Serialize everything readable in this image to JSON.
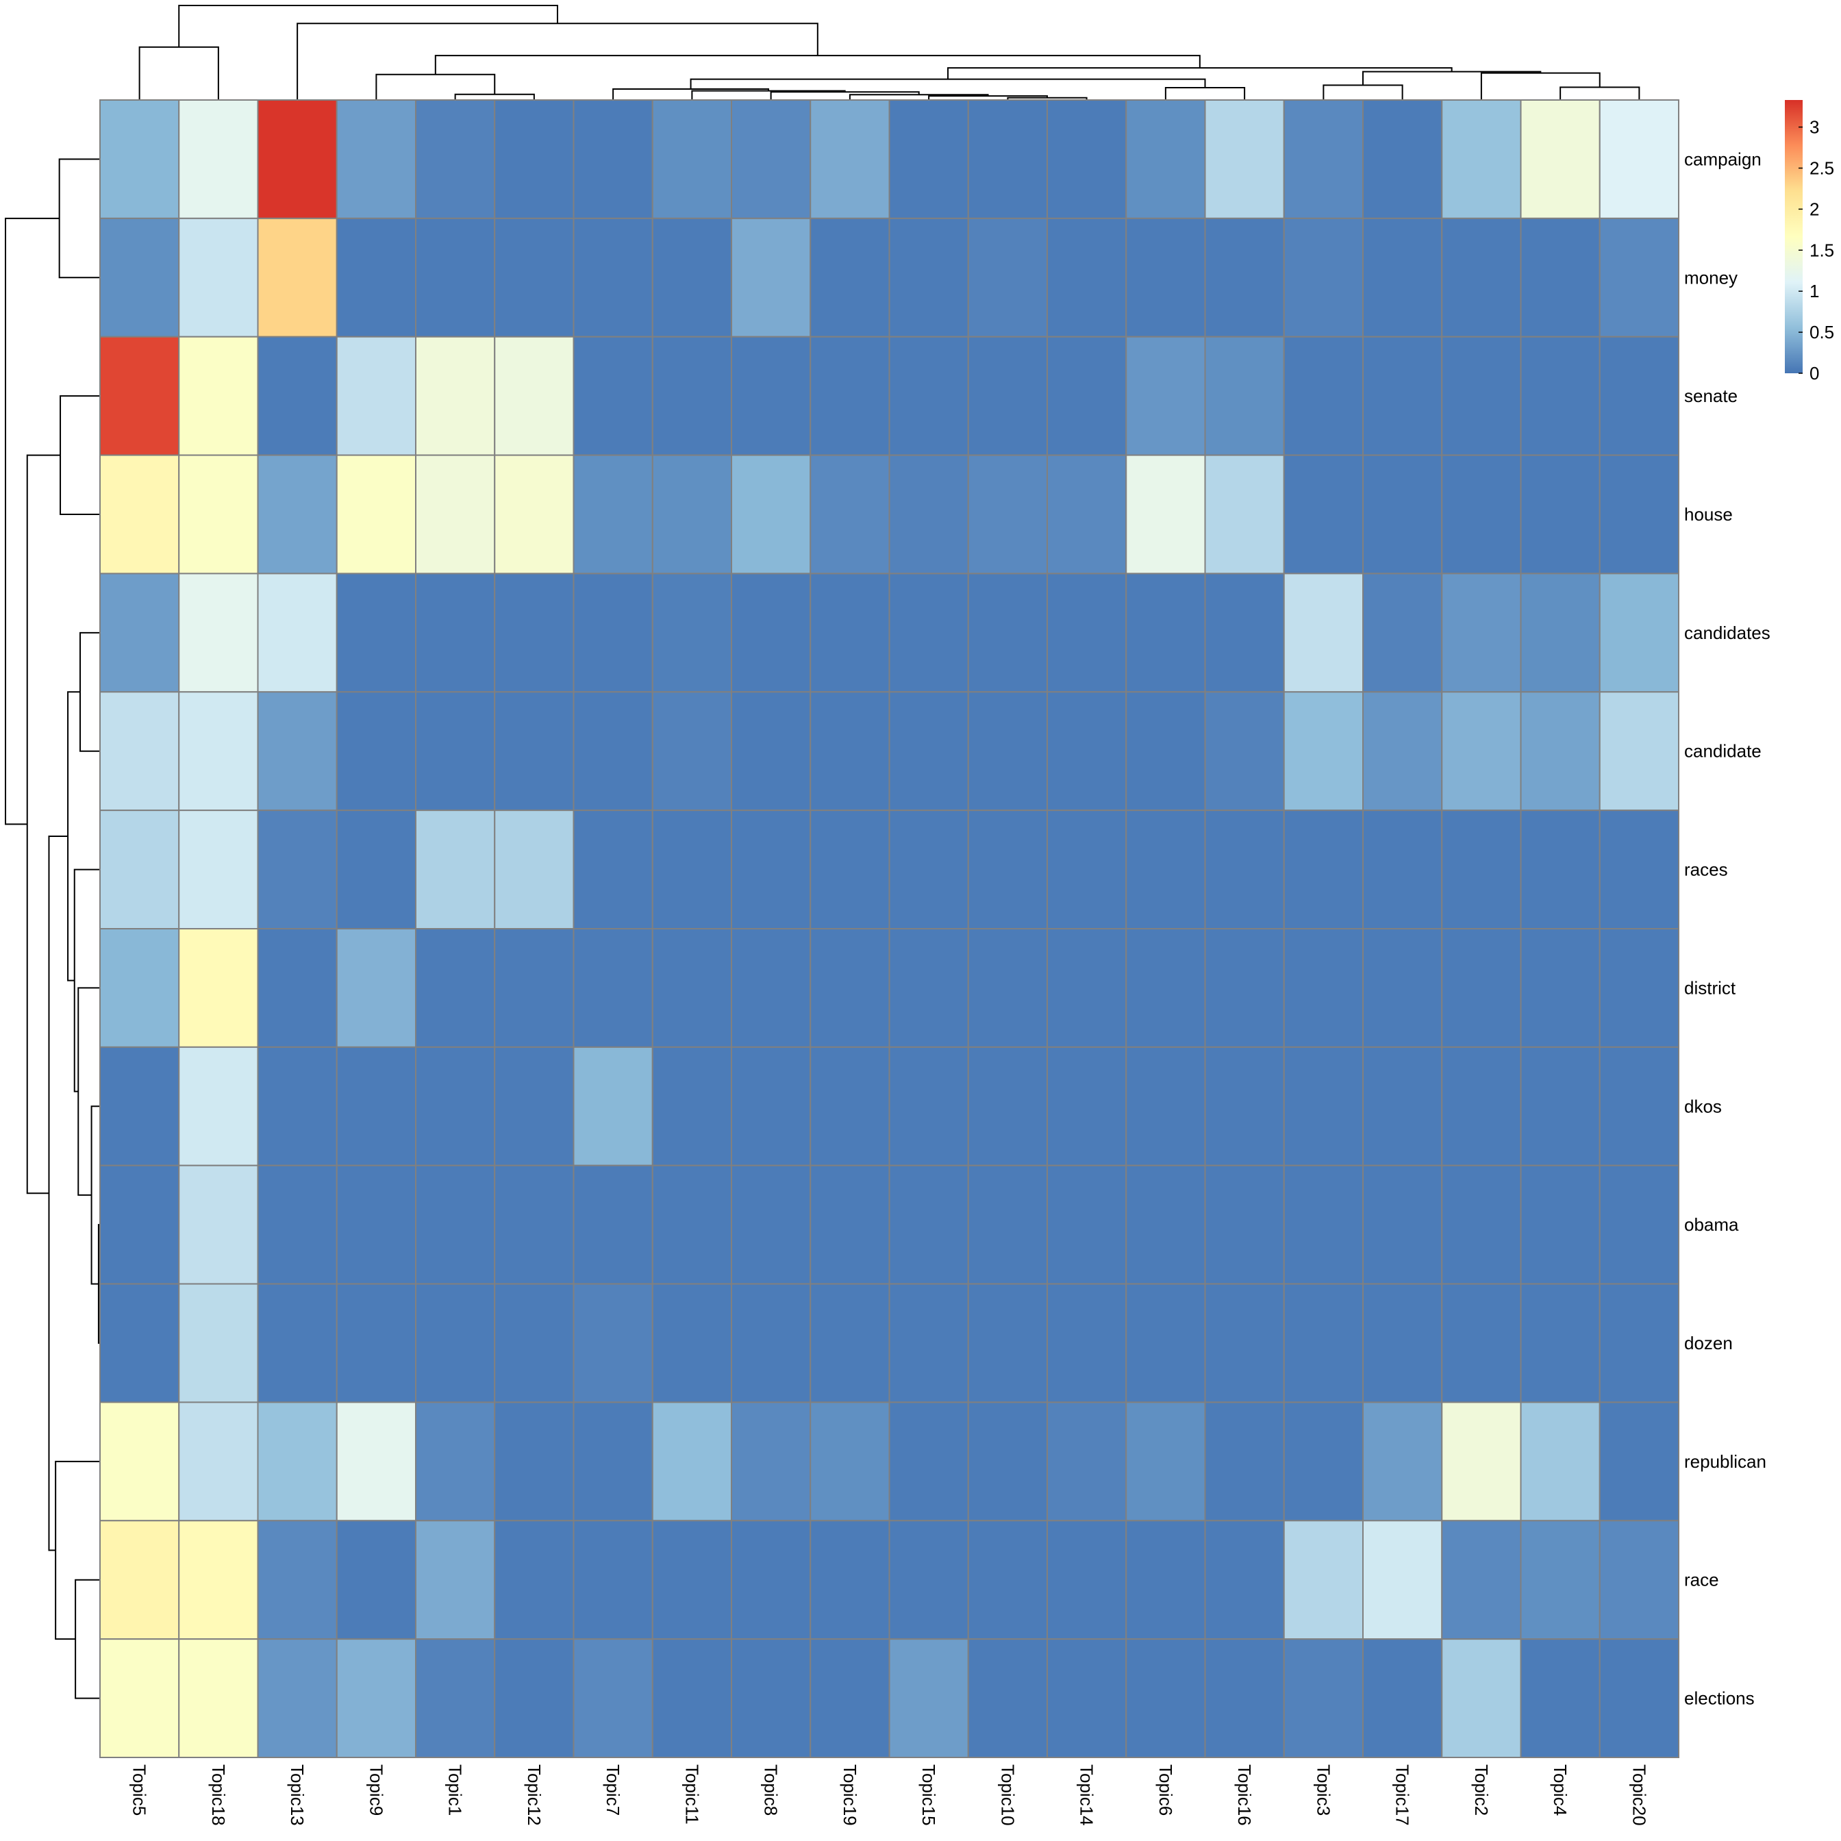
{
  "chart_data": {
    "type": "heatmap",
    "title": "",
    "columns": [
      "Topic5",
      "Topic18",
      "Topic13",
      "Topic9",
      "Topic1",
      "Topic12",
      "Topic7",
      "Topic11",
      "Topic8",
      "Topic19",
      "Topic15",
      "Topic10",
      "Topic14",
      "Topic6",
      "Topic16",
      "Topic3",
      "Topic17",
      "Topic2",
      "Topic4",
      "Topic20"
    ],
    "rows": [
      "campaign",
      "money",
      "senate",
      "house",
      "candidates",
      "candidate",
      "races",
      "district",
      "dkos",
      "obama",
      "dozen",
      "republican",
      "race",
      "elections"
    ],
    "values": [
      [
        0.5,
        1.2,
        3.3,
        0.3,
        0.1,
        0.05,
        0.05,
        0.2,
        0.15,
        0.4,
        0.05,
        0.05,
        0.05,
        0.2,
        0.8,
        0.15,
        0.05,
        0.6,
        1.4,
        1.1
      ],
      [
        0.2,
        0.95,
        2.3,
        0.05,
        0.05,
        0.05,
        0.05,
        0.05,
        0.4,
        0.05,
        0.05,
        0.1,
        0.05,
        0.05,
        0.05,
        0.1,
        0.05,
        0.05,
        0.05,
        0.15
      ],
      [
        3.2,
        1.6,
        0.05,
        0.9,
        1.4,
        1.35,
        0.05,
        0.05,
        0.05,
        0.05,
        0.05,
        0.05,
        0.05,
        0.25,
        0.2,
        0.05,
        0.05,
        0.05,
        0.05,
        0.05
      ],
      [
        1.8,
        1.6,
        0.35,
        1.6,
        1.4,
        1.5,
        0.2,
        0.2,
        0.5,
        0.15,
        0.1,
        0.15,
        0.15,
        1.25,
        0.8,
        0.05,
        0.05,
        0.05,
        0.05,
        0.05
      ],
      [
        0.3,
        1.2,
        1.0,
        0.05,
        0.05,
        0.05,
        0.05,
        0.08,
        0.05,
        0.05,
        0.05,
        0.05,
        0.05,
        0.05,
        0.05,
        0.9,
        0.1,
        0.25,
        0.2,
        0.5
      ],
      [
        0.9,
        1.0,
        0.3,
        0.05,
        0.05,
        0.05,
        0.05,
        0.1,
        0.05,
        0.05,
        0.05,
        0.05,
        0.05,
        0.05,
        0.1,
        0.55,
        0.25,
        0.45,
        0.35,
        0.8
      ],
      [
        0.8,
        1.0,
        0.1,
        0.05,
        0.75,
        0.75,
        0.05,
        0.05,
        0.05,
        0.05,
        0.05,
        0.05,
        0.05,
        0.05,
        0.05,
        0.05,
        0.05,
        0.05,
        0.05,
        0.05
      ],
      [
        0.5,
        1.75,
        0.05,
        0.45,
        0.05,
        0.05,
        0.05,
        0.05,
        0.05,
        0.05,
        0.05,
        0.05,
        0.05,
        0.05,
        0.05,
        0.05,
        0.05,
        0.05,
        0.05,
        0.05
      ],
      [
        0.05,
        1.0,
        0.05,
        0.05,
        0.05,
        0.05,
        0.5,
        0.05,
        0.05,
        0.05,
        0.05,
        0.05,
        0.05,
        0.05,
        0.05,
        0.05,
        0.05,
        0.05,
        0.05,
        0.05
      ],
      [
        0.05,
        0.9,
        0.05,
        0.05,
        0.05,
        0.05,
        0.05,
        0.05,
        0.05,
        0.05,
        0.05,
        0.05,
        0.05,
        0.05,
        0.05,
        0.05,
        0.05,
        0.05,
        0.05,
        0.05
      ],
      [
        0.05,
        0.85,
        0.05,
        0.05,
        0.05,
        0.05,
        0.1,
        0.05,
        0.05,
        0.05,
        0.05,
        0.05,
        0.05,
        0.05,
        0.05,
        0.05,
        0.05,
        0.05,
        0.05,
        0.05
      ],
      [
        1.6,
        0.9,
        0.6,
        1.2,
        0.15,
        0.05,
        0.05,
        0.55,
        0.15,
        0.2,
        0.05,
        0.05,
        0.1,
        0.2,
        0.05,
        0.05,
        0.3,
        1.4,
        0.65,
        0.05
      ],
      [
        1.85,
        1.75,
        0.15,
        0.05,
        0.4,
        0.05,
        0.05,
        0.05,
        0.05,
        0.05,
        0.05,
        0.05,
        0.05,
        0.05,
        0.05,
        0.8,
        1.0,
        0.15,
        0.2,
        0.15
      ],
      [
        1.6,
        1.6,
        0.25,
        0.45,
        0.1,
        0.05,
        0.15,
        0.05,
        0.05,
        0.05,
        0.3,
        0.05,
        0.05,
        0.05,
        0.05,
        0.1,
        0.05,
        0.7,
        0.05,
        0.05
      ]
    ],
    "color_scale": {
      "range": [
        0,
        3.33
      ],
      "colors": [
        "#4575B4",
        "#91BFDB",
        "#E0F3F8",
        "#FFFFBF",
        "#FEE090",
        "#FC8D59",
        "#D73027"
      ],
      "ticks": [
        0,
        0.5,
        1,
        1.5,
        2,
        2.5,
        3
      ],
      "tick_labels": [
        "0",
        "0.5",
        "1",
        "1.5",
        "2",
        "2.5",
        "3"
      ],
      "legend_placement": "right"
    },
    "cell_border_color": "#808080",
    "column_dendrogram": {
      "h": 1.0,
      "c": [
        {
          "h": 0.56,
          "c": [
            "Topic5",
            "Topic18"
          ]
        },
        {
          "h": 0.81,
          "c": [
            "Topic13",
            {
              "h": 0.47,
              "c": [
                {
                  "h": 0.27,
                  "c": [
                    "Topic9",
                    {
                      "h": 0.06,
                      "c": [
                        "Topic1",
                        "Topic12"
                      ]
                    }
                  ]
                },
                {
                  "h": 0.34,
                  "c": [
                    {
                      "h": 0.22,
                      "c": [
                        {
                          "h": 0.116,
                          "c": [
                            "Topic7",
                            {
                              "h": 0.097,
                              "c": [
                                "Topic11",
                                {
                                  "h": 0.085,
                                  "c": [
                                    "Topic8",
                                    {
                                      "h": 0.056,
                                      "c": [
                                        "Topic19",
                                        {
                                          "h": 0.043,
                                          "c": [
                                            "Topic15",
                                            {
                                              "h": 0.024,
                                              "c": [
                                                "Topic10",
                                                "Topic14"
                                              ]
                                            }
                                          ]
                                        }
                                      ]
                                    }
                                  ]
                                }
                              ]
                            }
                          ]
                        },
                        {
                          "h": 0.13,
                          "c": [
                            "Topic6",
                            "Topic16"
                          ]
                        }
                      ]
                    },
                    {
                      "h": 0.3,
                      "c": [
                        {
                          "h": 0.157,
                          "c": [
                            "Topic3",
                            "Topic17"
                          ]
                        },
                        {
                          "h": 0.285,
                          "c": [
                            "Topic2",
                            {
                              "h": 0.135,
                              "c": [
                                "Topic4",
                                "Topic20"
                              ]
                            }
                          ]
                        }
                      ]
                    }
                  ]
                }
              ]
            }
          ]
        }
      ]
    },
    "row_dendrogram": {
      "h": 1.0,
      "c": [
        {
          "h": 0.43,
          "c": [
            "campaign",
            "money"
          ]
        },
        {
          "h": 0.77,
          "c": [
            {
              "h": 0.42,
              "c": [
                "senate",
                "house"
              ]
            },
            {
              "h": 0.54,
              "c": [
                {
                  "h": 0.34,
                  "c": [
                    {
                      "h": 0.21,
                      "c": [
                        "candidates",
                        "candidate"
                      ]
                    },
                    {
                      "h": 0.27,
                      "c": [
                        "races",
                        {
                          "h": 0.23,
                          "c": [
                            "district",
                            {
                              "h": 0.09,
                              "c": [
                                "dkos",
                                {
                                  "h": 0.015,
                                  "c": [
                                    "obama",
                                    "dozen"
                                  ]
                                }
                              ]
                            }
                          ]
                        }
                      ]
                    }
                  ]
                },
                {
                  "h": 0.47,
                  "c": [
                    "republican",
                    {
                      "h": 0.26,
                      "c": [
                        "race",
                        "elections"
                      ]
                    }
                  ]
                }
              ]
            }
          ]
        }
      ]
    }
  }
}
